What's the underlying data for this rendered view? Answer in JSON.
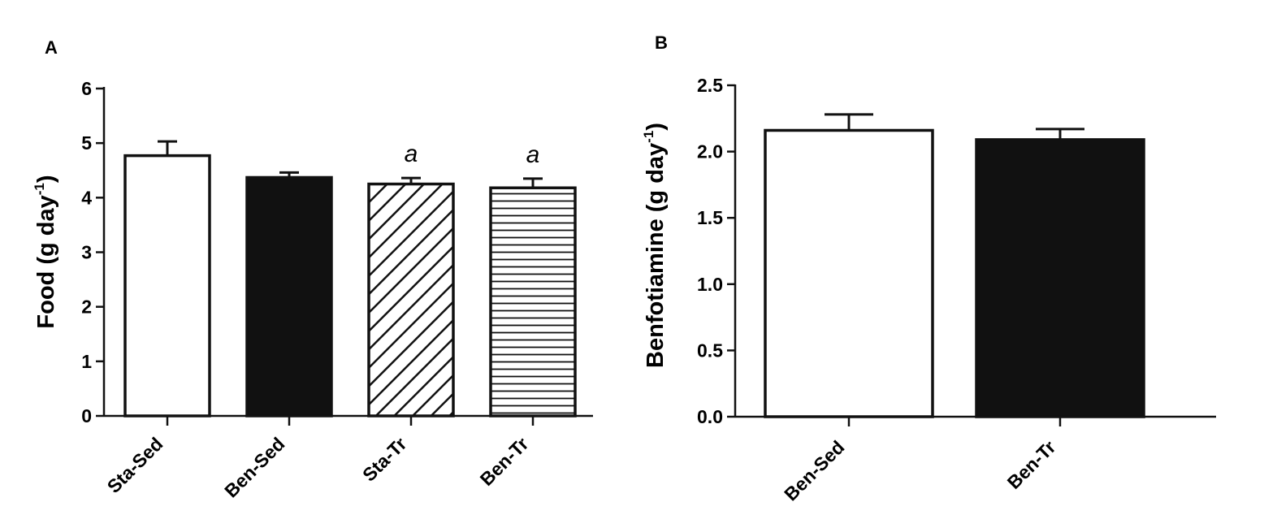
{
  "chart_data": [
    {
      "type": "bar",
      "panel": "A",
      "title": "",
      "xlabel": "",
      "ylabel": "Food (g day",
      "ylabel_superscript": "-1",
      "ylabel_close": ")",
      "ylim": [
        0,
        6
      ],
      "yticks": [
        "0",
        "1",
        "2",
        "3",
        "4",
        "5",
        "6"
      ],
      "categories": [
        "Sta-Sed",
        "Ben-Sed",
        "Sta-Tr",
        "Ben-Tr"
      ],
      "values": [
        4.77,
        4.37,
        4.25,
        4.18
      ],
      "errors": [
        0.26,
        0.09,
        0.11,
        0.17
      ],
      "fills": [
        "white",
        "black",
        "diagonal-hatch",
        "horizontal-hatch"
      ],
      "annotations": [
        "",
        "",
        "a",
        "a"
      ],
      "grid": false
    },
    {
      "type": "bar",
      "panel": "B",
      "title": "",
      "xlabel": "",
      "ylabel": "Benfotiamine (g day",
      "ylabel_superscript": "-1",
      "ylabel_close": ")",
      "ylim": [
        0,
        2.5
      ],
      "yticks": [
        "0.0",
        "0.5",
        "1.0",
        "1.5",
        "2.0",
        "2.5"
      ],
      "categories": [
        "Ben-Sed",
        "Ben-Tr"
      ],
      "values": [
        2.16,
        2.09
      ],
      "errors": [
        0.12,
        0.08
      ],
      "fills": [
        "white",
        "black"
      ],
      "annotations": [
        "",
        ""
      ],
      "grid": false
    }
  ]
}
